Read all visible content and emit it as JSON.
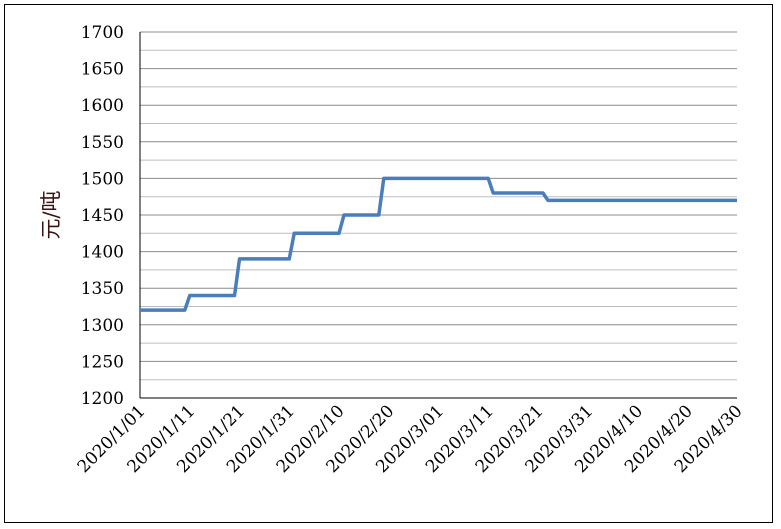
{
  "chart_data": {
    "type": "line",
    "title": "",
    "xlabel": "",
    "ylabel": "元/吨",
    "ylim": [
      1200,
      1700
    ],
    "yticks": [
      1200,
      1250,
      1300,
      1350,
      1400,
      1450,
      1500,
      1550,
      1600,
      1650,
      1700
    ],
    "xlim": [
      "2020-01-01",
      "2020-04-30"
    ],
    "xtick_labels": [
      "2020/1/01",
      "2020/1/11",
      "2020/1/21",
      "2020/1/31",
      "2020/2/10",
      "2020/2/20",
      "2020/3/01",
      "2020/3/11",
      "2020/3/21",
      "2020/3/31",
      "2020/4/10",
      "2020/4/20",
      "2020/4/30"
    ],
    "grid": true,
    "series": [
      {
        "color": "#4a7ebb",
        "points": [
          [
            "2020-01-01",
            1320
          ],
          [
            "2020-01-10",
            1320
          ],
          [
            "2020-01-11",
            1340
          ],
          [
            "2020-01-20",
            1340
          ],
          [
            "2020-01-21",
            1390
          ],
          [
            "2020-01-31",
            1390
          ],
          [
            "2020-02-01",
            1425
          ],
          [
            "2020-02-10",
            1425
          ],
          [
            "2020-02-11",
            1450
          ],
          [
            "2020-02-18",
            1450
          ],
          [
            "2020-02-19",
            1500
          ],
          [
            "2020-03-11",
            1500
          ],
          [
            "2020-03-12",
            1480
          ],
          [
            "2020-03-22",
            1480
          ],
          [
            "2020-03-23",
            1470
          ],
          [
            "2020-04-30",
            1470
          ]
        ]
      }
    ]
  }
}
